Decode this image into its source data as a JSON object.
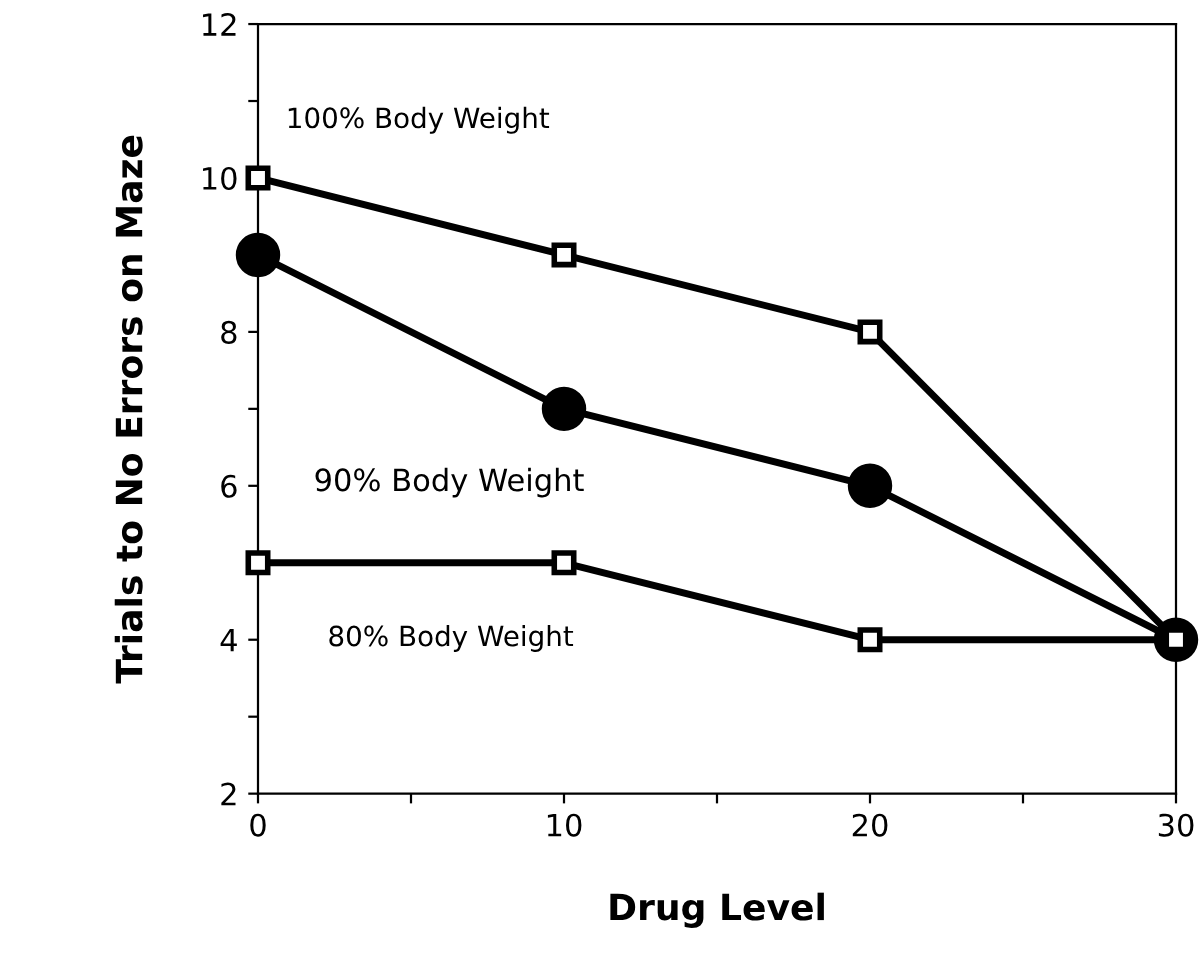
{
  "chart_data": {
    "type": "line",
    "xlabel": "Drug Level",
    "ylabel": "Trials to No Errors on Maze",
    "x": [
      0,
      10,
      20,
      30
    ],
    "series": [
      {
        "name": "100% Body Weight",
        "color": "#000000",
        "values": [
          10,
          9,
          8,
          4
        ],
        "marker": "square"
      },
      {
        "name": "90% Body Weight",
        "color": "#000000",
        "values": [
          9,
          7,
          6,
          4
        ],
        "marker": "circle"
      },
      {
        "name": "80% Body Weight",
        "color": "#000000",
        "values": [
          5,
          5,
          4,
          4
        ],
        "marker": "square"
      }
    ],
    "xlim": [
      0,
      30
    ],
    "ylim": [
      2,
      12
    ],
    "xticks": [
      0,
      {
        "value": 5,
        "label": null
      },
      10,
      {
        "value": 15,
        "label": null
      },
      20,
      {
        "value": 25,
        "label": null
      },
      30
    ],
    "yticks": [
      2,
      {
        "value": 3,
        "label": null
      },
      4,
      {
        "value": 5,
        "label": null
      },
      6,
      {
        "value": 7,
        "label": null
      },
      8,
      {
        "value": 9,
        "label": null
      },
      10,
      {
        "value": 11,
        "label": null
      },
      12
    ],
    "grid": false,
    "legend": false,
    "line_style": "solid"
  }
}
